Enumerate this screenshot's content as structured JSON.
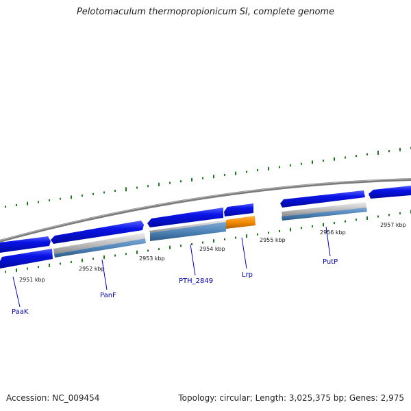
{
  "title": "Pelotomaculum thermopropionicum SI, complete genome",
  "footer": {
    "accession": "Accession: NC_009454",
    "topology": "Topology: circular; Length: 3,025,375 bp; Genes: 2,975"
  },
  "kbp_ticks": [
    "2951 kbp",
    "2952 kbp",
    "2953 kbp",
    "2954 kbp",
    "2955 kbp",
    "2956 kbp",
    "2957 kbp"
  ],
  "gene_labels": [
    "PaaK",
    "PanF",
    "PTH_2849",
    "Lrp",
    "PutP"
  ],
  "colors": {
    "backbone": "#808080",
    "gene_blue": "#0a14e6",
    "rna_gray": "#c8c8c8",
    "cds_steelblue": "#4f84b8",
    "highlight_orange": "#f28c00",
    "gc_tick_green": "#1a7a1a",
    "label_blue": "#0000aa"
  }
}
